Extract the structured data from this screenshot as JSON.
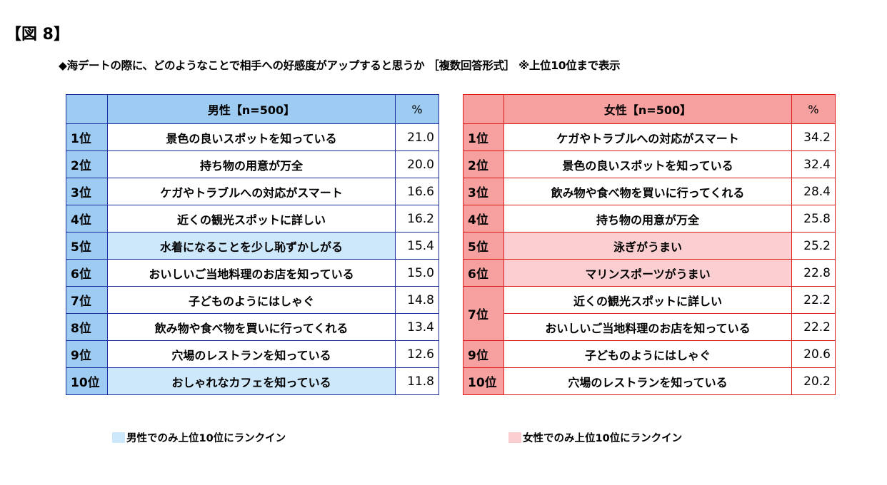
{
  "figure_label": "【図 8】",
  "subtitle": "◆海デートの際に、どのようなことで相手への好感度がアップすると思うか ［複数回答形式］ ※上位10位まで表示",
  "male": {
    "header": "男性【n=500】",
    "pct_header": "%",
    "rows": [
      {
        "rank": "1位",
        "item": "景色の良いスポットを知っている",
        "value": "21.0"
      },
      {
        "rank": "2位",
        "item": "持ち物の用意が万全",
        "value": "20.0"
      },
      {
        "rank": "3位",
        "item": "ケガやトラブルへの対応がスマート",
        "value": "16.6"
      },
      {
        "rank": "4位",
        "item": "近くの観光スポットに詳しい",
        "value": "16.2"
      },
      {
        "rank": "5位",
        "item": "水着になることを少し恥ずかしがる",
        "value": "15.4"
      },
      {
        "rank": "6位",
        "item": "おいしいご当地料理のお店を知っている",
        "value": "15.0"
      },
      {
        "rank": "7位",
        "item": "子どものようにはしゃぐ",
        "value": "14.8"
      },
      {
        "rank": "8位",
        "item": "飲み物や食べ物を買いに行ってくれる",
        "value": "13.4"
      },
      {
        "rank": "9位",
        "item": "穴場のレストランを知っている",
        "value": "12.6"
      },
      {
        "rank": "10位",
        "item": "おしゃれなカフェを知っている",
        "value": "11.8"
      }
    ],
    "note": "男性でのみ上位10位にランクイン"
  },
  "female": {
    "header": "女性【n=500】",
    "pct_header": "%",
    "rows": [
      {
        "rank": "1位",
        "item": "ケガやトラブルへの対応がスマート",
        "value": "34.2"
      },
      {
        "rank": "2位",
        "item": "景色の良いスポットを知っている",
        "value": "32.4"
      },
      {
        "rank": "3位",
        "item": "飲み物や食べ物を買いに行ってくれる",
        "value": "28.4"
      },
      {
        "rank": "4位",
        "item": "持ち物の用意が万全",
        "value": "25.8"
      },
      {
        "rank": "5位",
        "item": "泳ぎがうまい",
        "value": "25.2"
      },
      {
        "rank": "6位",
        "item": "マリンスポーツがうまい",
        "value": "22.8"
      },
      {
        "rank": "7位",
        "item": "近くの観光スポットに詳しい",
        "value": "22.2"
      },
      {
        "rank": "",
        "item": "おいしいご当地料理のお店を知っている",
        "value": "22.2"
      },
      {
        "rank": "9位",
        "item": "子どものようにはしゃぐ",
        "value": "20.6"
      },
      {
        "rank": "10位",
        "item": "穴場のレストランを知っている",
        "value": "20.2"
      }
    ],
    "note": "女性でのみ上位10位にランクイン"
  },
  "colors": {
    "male_border": "#1c2e9e",
    "male_header": "#9ecbf2",
    "male_exclusive": "#cde8fb",
    "female_border": "#e01b1b",
    "female_header": "#f6a0a0",
    "female_exclusive": "#fbcfd2"
  }
}
